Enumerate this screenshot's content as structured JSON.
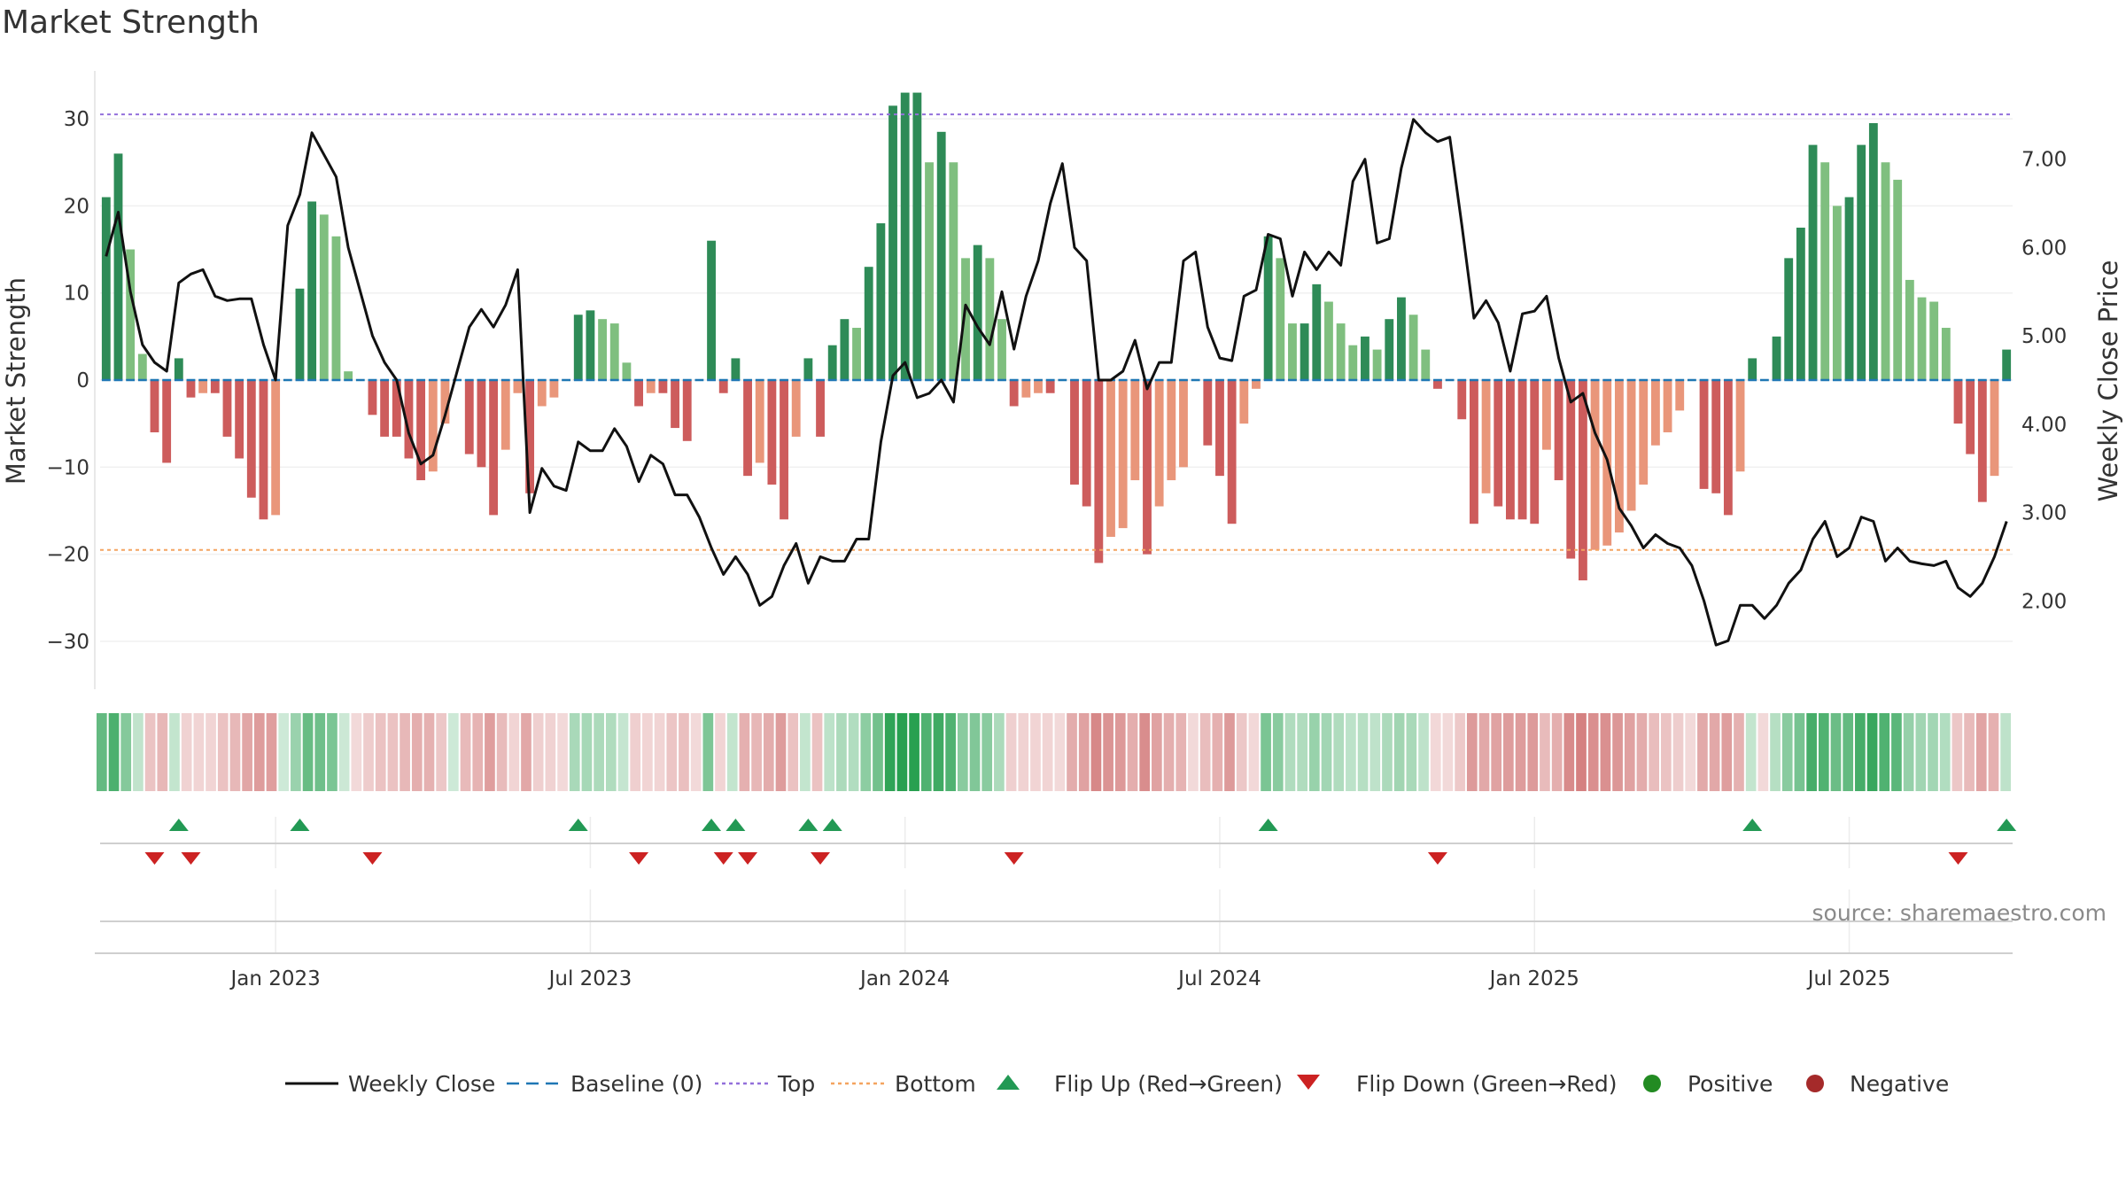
{
  "chart_data": {
    "type": "bar",
    "title": "Market Strength",
    "ylabel_left": "Market Strength",
    "ylabel_right": "Weekly Close Price",
    "left_ylim": [
      -35.5,
      35.5
    ],
    "right_ylim": [
      1.0,
      8.0
    ],
    "left_ticks": [
      30,
      20,
      10,
      0,
      -10,
      -20,
      -30
    ],
    "left_tick_labels": [
      "30",
      "20",
      "10",
      "0",
      "−10",
      "−20",
      "−30"
    ],
    "right_ticks": [
      7.0,
      6.0,
      5.0,
      4.0,
      3.0,
      2.0
    ],
    "right_tick_labels": [
      "7.00",
      "6.00",
      "5.00",
      "4.00",
      "3.00",
      "2.00"
    ],
    "x_tick_labels": [
      "Jan 2023",
      "Jul 2023",
      "Jan 2024",
      "Jul 2024",
      "Jan 2025",
      "Jul 2025"
    ],
    "x_tick_week_index": [
      14.5,
      40.5,
      66.5,
      92.5,
      118.5,
      144.5
    ],
    "week_count": 158,
    "top_line": 30.5,
    "bottom_line": -19.5,
    "strength": [
      21,
      26,
      15,
      3,
      -6,
      -9.5,
      2.5,
      -2,
      -1.5,
      -1.5,
      -6.5,
      -9,
      -13.5,
      -16,
      -15.5,
      0.5,
      10.5,
      20.5,
      19,
      16.5,
      1,
      -0.5,
      -4,
      -6.5,
      -6.5,
      -9,
      -11.5,
      -10.5,
      -5,
      0.5,
      -8.5,
      -10,
      -15.5,
      -8,
      -1.5,
      -13,
      -3,
      -2,
      -0.5,
      7.5,
      8,
      7,
      6.5,
      2,
      -3,
      -1.5,
      -1.5,
      -5.5,
      -7,
      -0.5,
      16,
      -1.5,
      2.5,
      -11,
      -9.5,
      -12,
      -16,
      -6.5,
      2.5,
      -6.5,
      4,
      7,
      6,
      13,
      18,
      31.5,
      33,
      33,
      25,
      28.5,
      25,
      14,
      15.5,
      14,
      7,
      -3,
      -2,
      -1.5,
      -1.5,
      -0.5,
      -12,
      -14.5,
      -21,
      -18,
      -17,
      -11.5,
      -20,
      -14.5,
      -11.5,
      -10,
      -0.5,
      -7.5,
      -11,
      -16.5,
      -5,
      -1,
      16.5,
      14,
      6.5,
      6.5,
      11,
      9,
      6.5,
      4,
      5,
      3.5,
      7,
      9.5,
      7.5,
      3.5,
      -1,
      -0.5,
      -4.5,
      -16.5,
      -13,
      -14.5,
      -16,
      -16,
      -16.5,
      -8,
      -11.5,
      -20.5,
      -23,
      -19.5,
      -19,
      -17.5,
      -15,
      -12,
      -7.5,
      -6,
      -3.5,
      -0.5,
      -12.5,
      -13,
      -15.5,
      -10.5,
      2.5,
      -0.5,
      5,
      14,
      17.5,
      27,
      25,
      20,
      21,
      27,
      29.5,
      25,
      23,
      11.5,
      9.5,
      9,
      6,
      -5,
      -8.5,
      -14,
      -11,
      3.5
    ],
    "close": [
      5.9,
      6.4,
      5.5,
      4.9,
      4.7,
      4.6,
      5.6,
      5.7,
      5.75,
      5.45,
      5.4,
      5.42,
      5.42,
      4.9,
      4.5,
      6.25,
      6.6,
      7.3,
      7.05,
      6.8,
      6.0,
      5.5,
      5.0,
      4.7,
      4.5,
      3.9,
      3.55,
      3.65,
      4.1,
      4.6,
      5.1,
      5.3,
      5.1,
      5.35,
      5.75,
      3.0,
      3.5,
      3.3,
      3.25,
      3.8,
      3.7,
      3.7,
      3.95,
      3.75,
      3.35,
      3.65,
      3.55,
      3.2,
      3.2,
      2.95,
      2.6,
      2.3,
      2.5,
      2.3,
      1.95,
      2.05,
      2.4,
      2.65,
      2.2,
      2.5,
      2.45,
      2.45,
      2.7,
      2.7,
      3.8,
      4.55,
      4.7,
      4.3,
      4.35,
      4.5,
      4.25,
      5.35,
      5.1,
      4.9,
      5.5,
      4.85,
      5.45,
      5.85,
      6.5,
      6.95,
      6.0,
      5.85,
      4.5,
      4.5,
      4.6,
      4.95,
      4.4,
      4.7,
      4.7,
      5.85,
      5.95,
      5.1,
      4.75,
      4.72,
      5.45,
      5.52,
      6.15,
      6.1,
      5.45,
      5.95,
      5.75,
      5.95,
      5.8,
      6.75,
      7.0,
      6.05,
      6.1,
      6.9,
      7.45,
      7.3,
      7.2,
      7.25,
      6.25,
      5.2,
      5.4,
      5.15,
      4.6,
      5.25,
      5.28,
      5.45,
      4.75,
      4.25,
      4.35,
      3.9,
      3.6,
      3.05,
      2.85,
      2.6,
      2.75,
      2.65,
      2.6,
      2.4,
      2.0,
      1.5,
      1.55,
      1.95,
      1.95,
      1.8,
      1.95,
      2.2,
      2.35,
      2.7,
      2.9,
      2.5,
      2.6,
      2.95,
      2.9,
      2.45,
      2.6,
      2.45,
      2.42,
      2.4,
      2.45,
      2.15,
      2.05,
      2.2,
      2.5,
      2.9
    ],
    "colors": {
      "green_dark": "#2e8b57",
      "green_light": "#7fbf7f",
      "red_dark": "#cd5c5c",
      "red_light": "#e9967a",
      "baseline": "#1f77b4",
      "top": "#9370db",
      "bottom": "#f4a460",
      "close": "#111111",
      "flip_up": "#229954",
      "flip_down": "#cc2222",
      "positive": "#228b22",
      "negative": "#a52a2a"
    }
  },
  "source_text": "source: sharemaestro.com",
  "legend": {
    "weekly_close": "Weekly Close",
    "baseline": "Baseline (0)",
    "top": "Top",
    "bottom": "Bottom",
    "flip_up": "Flip Up (Red→Green)",
    "flip_down": "Flip Down (Green→Red)",
    "positive": "Positive",
    "negative": "Negative"
  }
}
